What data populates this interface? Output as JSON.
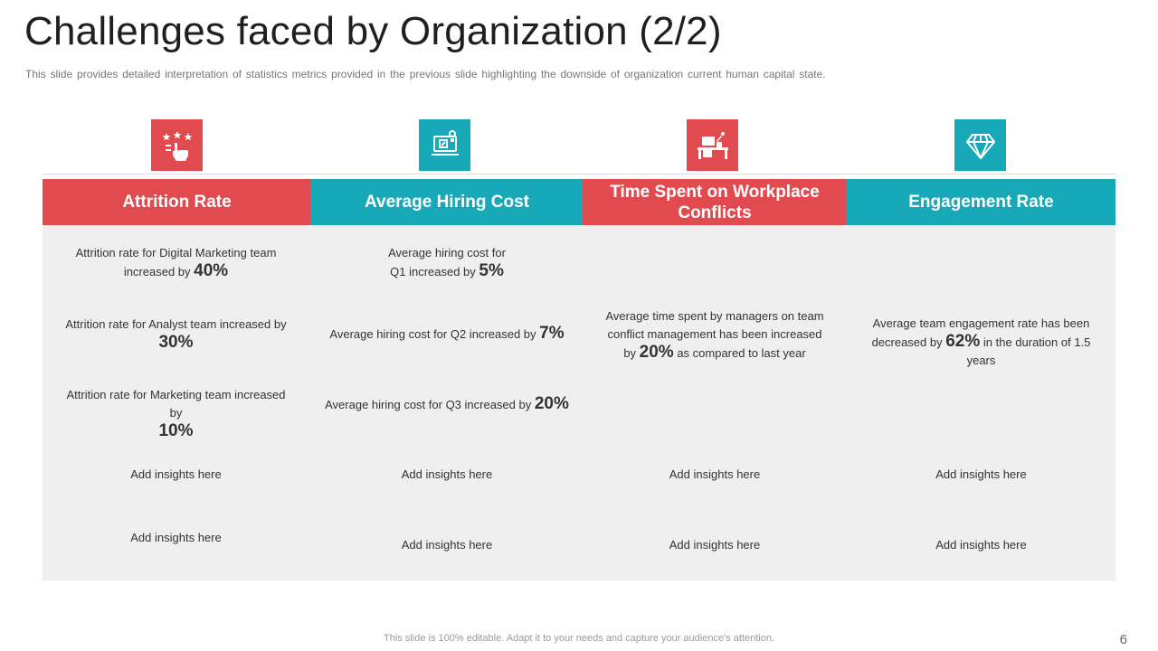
{
  "slide": {
    "title": "Challenges faced by Organization (2/2)",
    "subtitle": "This slide provides detailed interpretation of statistics metrics provided in the previous slide highlighting the downside of organization current human capital state.",
    "footer": "This slide is 100% editable. Adapt it to your needs and capture your audience's attention.",
    "page_number": "6"
  },
  "colors": {
    "red": "#e14b50",
    "teal": "#18a9b8",
    "body_bg": "#efefef"
  },
  "icons": [
    "rating-stars-icon",
    "hiring-cost-icon",
    "workplace-desk-icon",
    "diamond-icon"
  ],
  "columns": [
    {
      "header": "Attrition Rate",
      "items": [
        {
          "text_before": "Attrition rate for Digital Marketing team increased by ",
          "value": "40%",
          "text_after": ""
        },
        {
          "text_before": "Attrition rate for Analyst team increased by ",
          "value": "30%",
          "text_after": ""
        },
        {
          "text_before": "Attrition rate for Marketing team increased by ",
          "value": "10%",
          "text_after": ""
        },
        {
          "text_before": "Add insights here",
          "value": "",
          "text_after": ""
        },
        {
          "text_before": "Add insights here",
          "value": "",
          "text_after": ""
        }
      ]
    },
    {
      "header": "Average Hiring Cost",
      "items": [
        {
          "text_before": "Average hiring cost for Q1 increased by ",
          "value": "5%",
          "text_after": ""
        },
        {
          "text_before": "Average hiring cost for Q2 increased by ",
          "value": "7%",
          "text_after": ""
        },
        {
          "text_before": "Average hiring cost for Q3 increased by ",
          "value": "20%",
          "text_after": ""
        },
        {
          "text_before": "Add insights here",
          "value": "",
          "text_after": ""
        },
        {
          "text_before": "Add insights here",
          "value": "",
          "text_after": ""
        }
      ]
    },
    {
      "header": "Time Spent on Workplace Conflicts",
      "items": [
        {
          "text_before": "Average time spent by managers on team conflict management has been increased by ",
          "value": "20%",
          "text_after": " as compared to last year"
        },
        {
          "text_before": "Add insights here",
          "value": "",
          "text_after": ""
        },
        {
          "text_before": "Add insights here",
          "value": "",
          "text_after": ""
        }
      ]
    },
    {
      "header": "Engagement Rate",
      "items": [
        {
          "text_before": "Average team engagement rate has been decreased by ",
          "value": "62%",
          "text_after": " in the duration of 1.5 years"
        },
        {
          "text_before": "Add insights here",
          "value": "",
          "text_after": ""
        },
        {
          "text_before": "Add insights here",
          "value": "",
          "text_after": ""
        }
      ]
    }
  ]
}
